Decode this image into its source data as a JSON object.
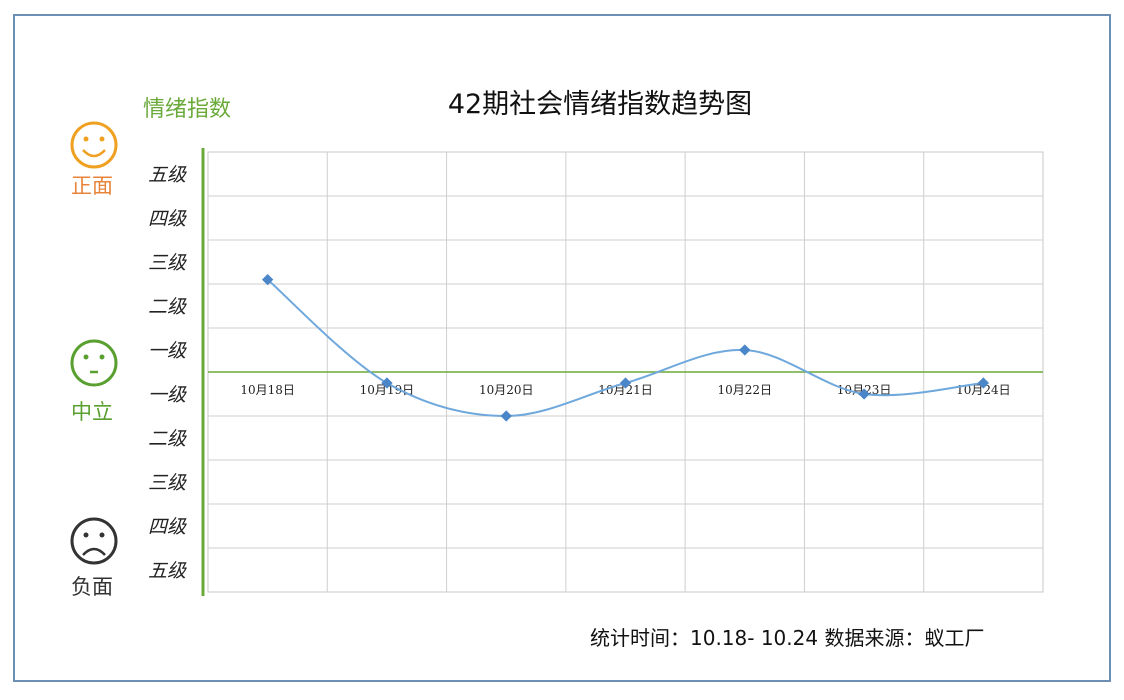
{
  "chart_data": {
    "type": "line",
    "title": "42期社会情绪指数趋势图",
    "ylabel": "情绪指数",
    "categories": [
      "10月18日",
      "10月19日",
      "10月20日",
      "10月21日",
      "10月22日",
      "10月23日",
      "10月24日"
    ],
    "series": [
      {
        "values": [
          2.1,
          -0.25,
          -1.0,
          -0.25,
          0.5,
          -0.5,
          -0.25
        ]
      }
    ],
    "ylim": [
      -5,
      5
    ],
    "ytick_labels_positive": [
      "五级",
      "四级",
      "三级",
      "二级",
      "一级"
    ],
    "ytick_labels_negative": [
      "一级",
      "二级",
      "三级",
      "四级",
      "五级"
    ],
    "grid": true,
    "line_color": "#6fa8dc",
    "zero_line_color": "#6aaa3a"
  },
  "faces": {
    "positive": {
      "label": "正面",
      "color": "#f0a020",
      "icon": "smile-face-icon"
    },
    "neutral": {
      "label": "中立",
      "color": "#5aa030",
      "icon": "neutral-face-icon"
    },
    "negative": {
      "label": "负面",
      "color": "#333333",
      "icon": "sad-face-icon"
    }
  },
  "footer": "统计时间：10.18- 10.24 数据来源：蚁工厂"
}
